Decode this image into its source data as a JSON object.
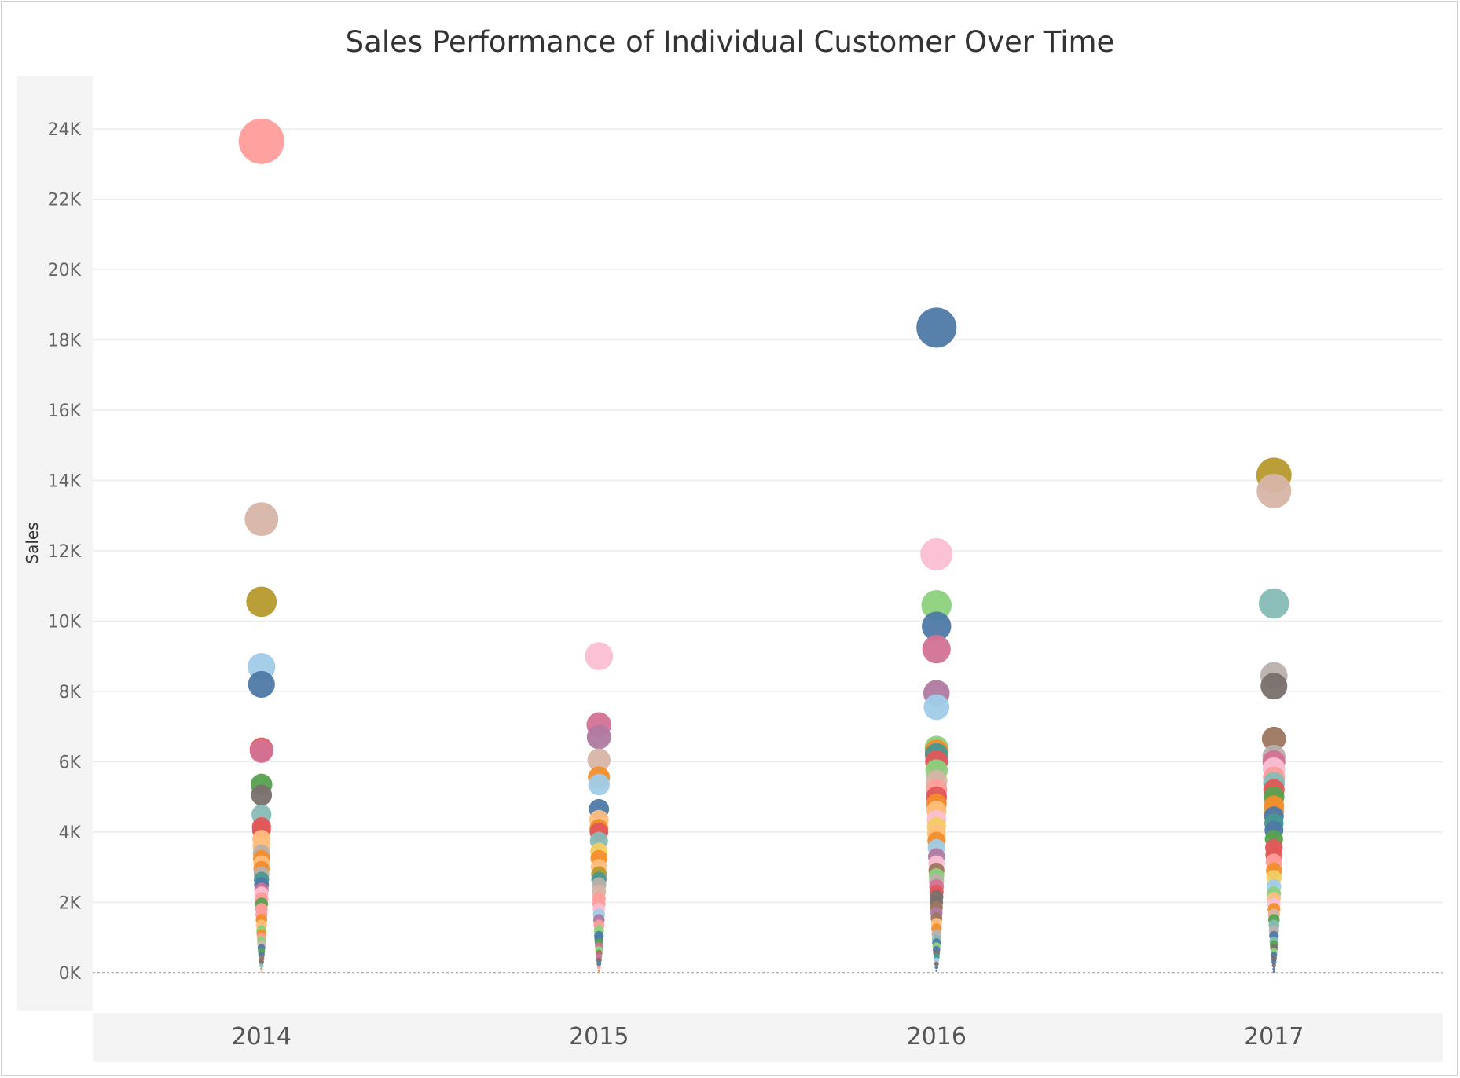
{
  "chart_data": {
    "type": "scatter",
    "title": "Sales Performance of Individual Customer Over Time",
    "xlabel": "",
    "ylabel": "Sales",
    "categories": [
      "2014",
      "2015",
      "2016",
      "2017"
    ],
    "ylim": [
      -1100,
      25500
    ],
    "yticks": [
      0,
      2000,
      4000,
      6000,
      8000,
      10000,
      12000,
      14000,
      16000,
      18000,
      20000,
      22000,
      24000
    ],
    "ytick_labels": [
      "0K",
      "2K",
      "4K",
      "6K",
      "8K",
      "10K",
      "12K",
      "14K",
      "16K",
      "18K",
      "20K",
      "22K",
      "24K"
    ],
    "grid": true,
    "size_encodes": "Sales",
    "series": [
      {
        "year": "2014",
        "values": [
          23650,
          12900,
          10550,
          8700,
          8200,
          6350,
          6300,
          5350,
          5050,
          4500,
          4150,
          4050,
          3800,
          3600,
          3400,
          3250,
          3100,
          2950,
          2800,
          2650,
          2500,
          2350,
          2250,
          2100,
          1950,
          1800,
          1650,
          1500,
          1350,
          1200,
          1100,
          1000,
          900,
          800,
          700,
          600,
          500,
          400,
          300,
          200,
          100,
          20
        ],
        "colors": [
          "#ff9d9a",
          "#d7b5a6",
          "#b6992d",
          "#a0cbe8",
          "#4e79a7",
          "#e15759",
          "#d37295",
          "#59a14f",
          "#79706e",
          "#86bcb6",
          "#e15759",
          "#e15759",
          "#ffbe7d",
          "#ffbe7d",
          "#bab0ac",
          "#f28e2b",
          "#ffbe7d",
          "#f28e2b",
          "#bab0ac",
          "#499894",
          "#4e79a7",
          "#d37295",
          "#fabfd2",
          "#ff9d9a",
          "#59a14f",
          "#ff9d9a",
          "#ff9d9a",
          "#f28e2b",
          "#ffbe7d",
          "#8cd17d",
          "#f28e2b",
          "#ff9d9a",
          "#8cd17d",
          "#d7b5a6",
          "#4e79a7",
          "#59a14f",
          "#4e79a7",
          "#9d7660",
          "#79706e",
          "#86bcb6",
          "#bab0ac",
          "#ffbe7d"
        ]
      },
      {
        "year": "2015",
        "values": [
          9000,
          7050,
          6700,
          6050,
          5550,
          5350,
          4650,
          4350,
          4100,
          4000,
          3750,
          3450,
          3250,
          3000,
          2800,
          2650,
          2500,
          2300,
          2100,
          1950,
          1800,
          1650,
          1500,
          1350,
          1200,
          1050,
          950,
          850,
          750,
          650,
          550,
          450,
          350,
          250,
          150,
          50
        ],
        "colors": [
          "#fabfd2",
          "#d37295",
          "#b07aa1",
          "#d7b5a6",
          "#f28e2b",
          "#a0cbe8",
          "#4e79a7",
          "#ffbe7d",
          "#f28e2b",
          "#e15759",
          "#86bcb6",
          "#f1ce63",
          "#f28e2b",
          "#ffbe7d",
          "#b6992d",
          "#499894",
          "#bab0ac",
          "#d7b5a6",
          "#ff9d9a",
          "#ff9d9a",
          "#fabfd2",
          "#a0cbe8",
          "#b07aa1",
          "#ff9d9a",
          "#8cd17d",
          "#4e79a7",
          "#4e79a7",
          "#59a14f",
          "#d37295",
          "#8cd17d",
          "#9d7660",
          "#d37295",
          "#79706e",
          "#4e79a7",
          "#ff9d9a",
          "#f28e2b"
        ]
      },
      {
        "year": "2016",
        "values": [
          18350,
          11900,
          10450,
          9850,
          9200,
          7950,
          7550,
          6400,
          6300,
          6200,
          6000,
          5750,
          5450,
          5200,
          5000,
          4800,
          4600,
          4350,
          4150,
          3950,
          3750,
          3550,
          3300,
          3100,
          2900,
          2750,
          2600,
          2450,
          2300,
          2150,
          2000,
          1850,
          1700,
          1550,
          1400,
          1250,
          1100,
          950,
          850,
          750,
          650,
          550,
          450,
          350,
          250,
          150,
          50
        ],
        "colors": [
          "#4e79a7",
          "#fabfd2",
          "#8cd17d",
          "#4e79a7",
          "#d37295",
          "#b07aa1",
          "#a0cbe8",
          "#8cd17d",
          "#f28e2b",
          "#499894",
          "#e15759",
          "#8cd17d",
          "#d7b5a6",
          "#ff9d9a",
          "#e15759",
          "#f28e2b",
          "#ffbe7d",
          "#fabfd2",
          "#f1ce63",
          "#ffbe7d",
          "#f28e2b",
          "#a0cbe8",
          "#b07aa1",
          "#fabfd2",
          "#9d7660",
          "#8cd17d",
          "#bab0ac",
          "#d37295",
          "#e15759",
          "#79706e",
          "#79706e",
          "#9d7660",
          "#b07aa1",
          "#9d7660",
          "#ffbe7d",
          "#f28e2b",
          "#bab0ac",
          "#86bcb6",
          "#4e79a7",
          "#8cd17d",
          "#4e79a7",
          "#79706e",
          "#499894",
          "#a0cbe8",
          "#79706e",
          "#4e79a7",
          "#79706e"
        ]
      },
      {
        "year": "2017",
        "values": [
          14150,
          13700,
          10500,
          8450,
          8150,
          6650,
          6150,
          6000,
          5800,
          5550,
          5400,
          5200,
          5000,
          4750,
          4600,
          4450,
          4250,
          4050,
          3800,
          3550,
          3350,
          3150,
          2900,
          2700,
          2450,
          2250,
          2100,
          1950,
          1800,
          1650,
          1500,
          1350,
          1200,
          1050,
          900,
          800,
          700,
          600,
          500,
          400,
          300,
          200,
          100,
          30
        ],
        "colors": [
          "#b6992d",
          "#d7b5a6",
          "#86bcb6",
          "#bab0ac",
          "#79706e",
          "#9d7660",
          "#bab0ac",
          "#d37295",
          "#fabfd2",
          "#ff9d9a",
          "#86bcb6",
          "#e15759",
          "#59a14f",
          "#f28e2b",
          "#f28e2b",
          "#4e79a7",
          "#499894",
          "#4e79a7",
          "#59a14f",
          "#e15759",
          "#e15759",
          "#ff9d9a",
          "#f28e2b",
          "#f1ce63",
          "#a0cbe8",
          "#8cd17d",
          "#ffbe7d",
          "#fabfd2",
          "#f28e2b",
          "#d7b5a6",
          "#59a14f",
          "#86bcb6",
          "#bab0ac",
          "#4e79a7",
          "#86bcb6",
          "#59a14f",
          "#79706e",
          "#8cd17d",
          "#4e79a7",
          "#79706e",
          "#4e79a7",
          "#79706e",
          "#4e79a7",
          "#79706e"
        ]
      }
    ]
  }
}
